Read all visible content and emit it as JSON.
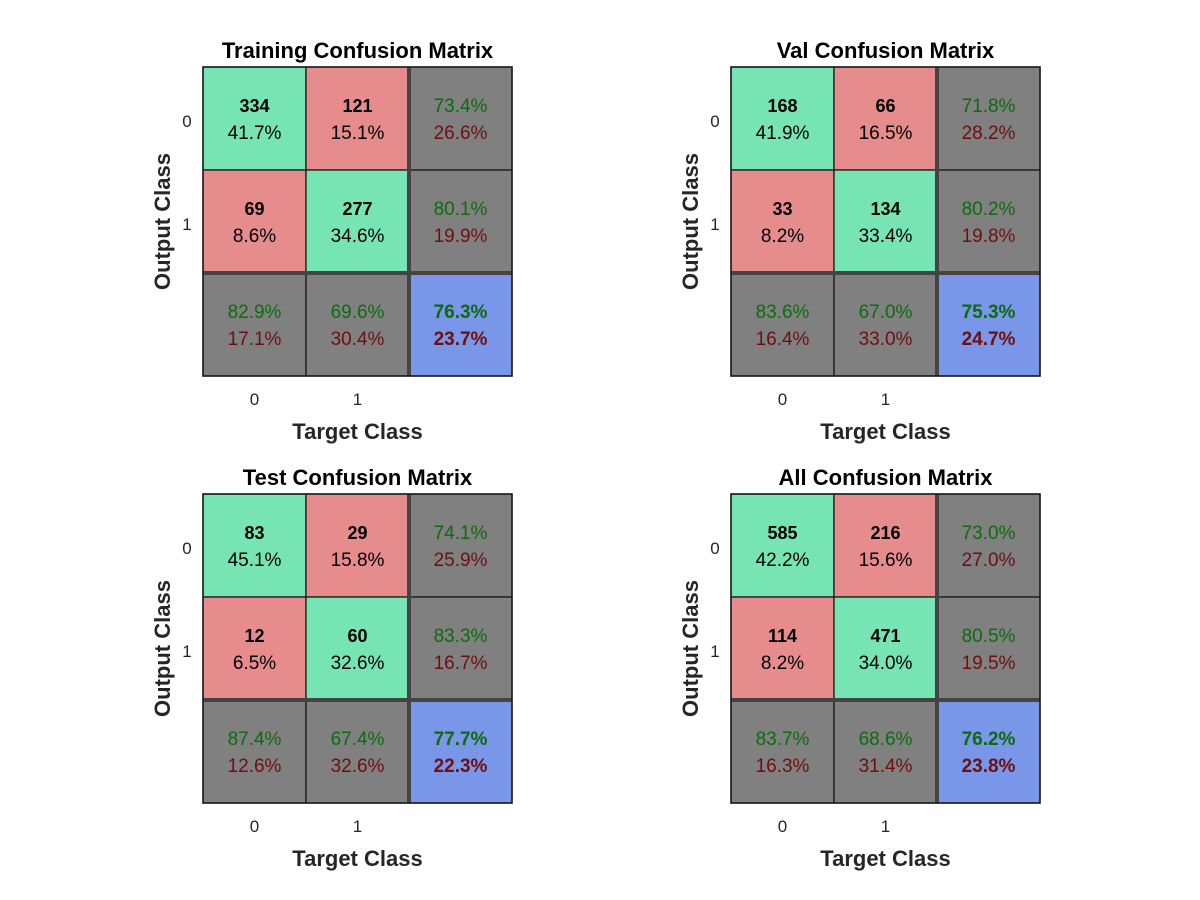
{
  "colors": {
    "correct": "#77e4b4",
    "incorrect": "#e68c8c",
    "summary": "#808080",
    "overall": "#7996e8",
    "pct_good": "#0d6b0d",
    "pct_bad": "#6e0f0f",
    "border": "#1a1a1a",
    "separator": "#444444"
  },
  "chart_data": [
    {
      "type": "confusion-matrix",
      "title": "Training Confusion Matrix",
      "xlabel": "Target Class",
      "ylabel": "Output Class",
      "row_ticks": [
        "0",
        "1"
      ],
      "col_ticks": [
        "0",
        "1"
      ],
      "counts": [
        [
          334,
          121
        ],
        [
          69,
          277
        ]
      ],
      "cell_pct": [
        [
          "41.7%",
          "15.1%"
        ],
        [
          "8.6%",
          "34.6%"
        ]
      ],
      "row_summary": [
        [
          "73.4%",
          "26.6%"
        ],
        [
          "80.1%",
          "19.9%"
        ]
      ],
      "col_summary": [
        [
          "82.9%",
          "17.1%"
        ],
        [
          "69.6%",
          "30.4%"
        ]
      ],
      "overall": [
        "76.3%",
        "23.7%"
      ]
    },
    {
      "type": "confusion-matrix",
      "title": "Val Confusion Matrix",
      "xlabel": "Target Class",
      "ylabel": "Output Class",
      "row_ticks": [
        "0",
        "1"
      ],
      "col_ticks": [
        "0",
        "1"
      ],
      "counts": [
        [
          168,
          66
        ],
        [
          33,
          134
        ]
      ],
      "cell_pct": [
        [
          "41.9%",
          "16.5%"
        ],
        [
          "8.2%",
          "33.4%"
        ]
      ],
      "row_summary": [
        [
          "71.8%",
          "28.2%"
        ],
        [
          "80.2%",
          "19.8%"
        ]
      ],
      "col_summary": [
        [
          "83.6%",
          "16.4%"
        ],
        [
          "67.0%",
          "33.0%"
        ]
      ],
      "overall": [
        "75.3%",
        "24.7%"
      ]
    },
    {
      "type": "confusion-matrix",
      "title": "Test Confusion Matrix",
      "xlabel": "Target Class",
      "ylabel": "Output Class",
      "row_ticks": [
        "0",
        "1"
      ],
      "col_ticks": [
        "0",
        "1"
      ],
      "counts": [
        [
          83,
          29
        ],
        [
          12,
          60
        ]
      ],
      "cell_pct": [
        [
          "45.1%",
          "15.8%"
        ],
        [
          "6.5%",
          "32.6%"
        ]
      ],
      "row_summary": [
        [
          "74.1%",
          "25.9%"
        ],
        [
          "83.3%",
          "16.7%"
        ]
      ],
      "col_summary": [
        [
          "87.4%",
          "12.6%"
        ],
        [
          "67.4%",
          "32.6%"
        ]
      ],
      "overall": [
        "77.7%",
        "22.3%"
      ]
    },
    {
      "type": "confusion-matrix",
      "title": "All Confusion Matrix",
      "xlabel": "Target Class",
      "ylabel": "Output Class",
      "row_ticks": [
        "0",
        "1"
      ],
      "col_ticks": [
        "0",
        "1"
      ],
      "counts": [
        [
          585,
          216
        ],
        [
          114,
          471
        ]
      ],
      "cell_pct": [
        [
          "42.2%",
          "15.6%"
        ],
        [
          "8.2%",
          "34.0%"
        ]
      ],
      "row_summary": [
        [
          "73.0%",
          "27.0%"
        ],
        [
          "80.5%",
          "19.5%"
        ]
      ],
      "col_summary": [
        [
          "83.7%",
          "16.3%"
        ],
        [
          "68.6%",
          "31.4%"
        ]
      ],
      "overall": [
        "76.2%",
        "23.8%"
      ]
    }
  ]
}
